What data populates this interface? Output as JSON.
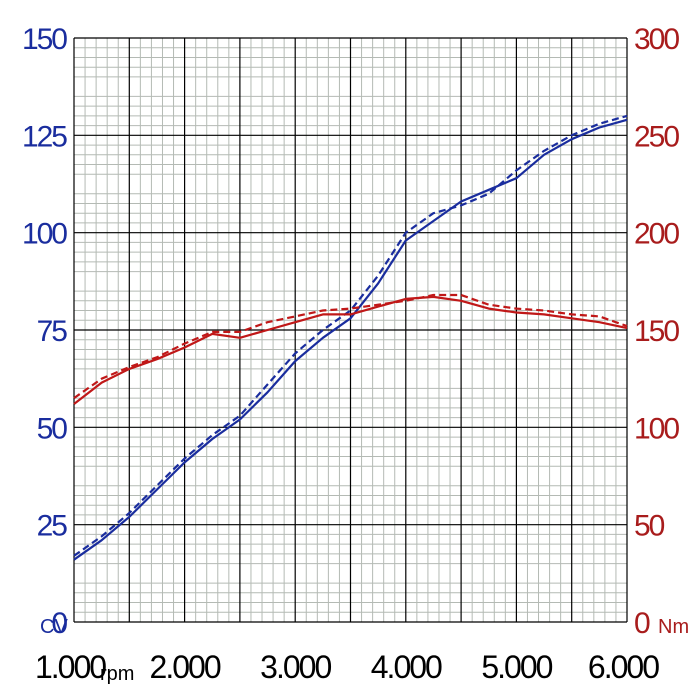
{
  "chart_data": {
    "type": "line",
    "x_ticks": [
      "1.000",
      "2.000",
      "3.000",
      "4.000",
      "5.000",
      "6.000"
    ],
    "x_tick_values": [
      1000,
      2000,
      3000,
      4000,
      5000,
      6000
    ],
    "x_unit": "rpm",
    "xlim": [
      1000,
      6000
    ],
    "y_left_ticks": [
      "0",
      "25",
      "50",
      "75",
      "100",
      "125",
      "150"
    ],
    "y_left_tick_values": [
      0,
      25,
      50,
      75,
      100,
      125,
      150
    ],
    "y_left_unit": "CV",
    "y_left_lim": [
      0,
      150
    ],
    "y_right_ticks": [
      "0",
      "50",
      "100",
      "150",
      "200",
      "250",
      "300"
    ],
    "y_right_tick_values": [
      0,
      50,
      100,
      150,
      200,
      250,
      300
    ],
    "y_right_unit": "Nm",
    "y_right_lim": [
      0,
      300
    ],
    "grid": true,
    "colors": {
      "power": "#1a2d9e",
      "torque": "#c01818",
      "grid_minor": "#b4bab4",
      "grid_major": "#000000"
    },
    "x": [
      1000,
      1250,
      1500,
      1750,
      2000,
      2250,
      2500,
      2750,
      3000,
      3250,
      3500,
      3750,
      4000,
      4250,
      4500,
      4750,
      5000,
      5250,
      5500,
      5750,
      6000
    ],
    "series": [
      {
        "axis": "left",
        "color": "#1a2d9e",
        "values": [
          16,
          21,
          27,
          34,
          41,
          47,
          52,
          59,
          67,
          73,
          78,
          87,
          98,
          103,
          108,
          111,
          114,
          120,
          124,
          127,
          129
        ]
      },
      {
        "axis": "left",
        "color": "#1a2d9e",
        "values": [
          17,
          22,
          28,
          35,
          42,
          48,
          53,
          61,
          69,
          75,
          80,
          89,
          100,
          105,
          107,
          110,
          116,
          121,
          125,
          128,
          130
        ]
      },
      {
        "axis": "right",
        "color": "#c01818",
        "values": [
          112,
          123,
          130,
          135,
          141,
          148,
          146,
          150,
          154,
          158,
          158,
          162,
          166,
          167,
          165,
          161,
          159,
          158,
          156,
          154,
          151
        ]
      },
      {
        "axis": "right",
        "color": "#c01818",
        "values": [
          115,
          125,
          131,
          136,
          143,
          149,
          149,
          154,
          157,
          160,
          161,
          163,
          165,
          168,
          168,
          163,
          161,
          160,
          158,
          157,
          152
        ]
      }
    ]
  }
}
